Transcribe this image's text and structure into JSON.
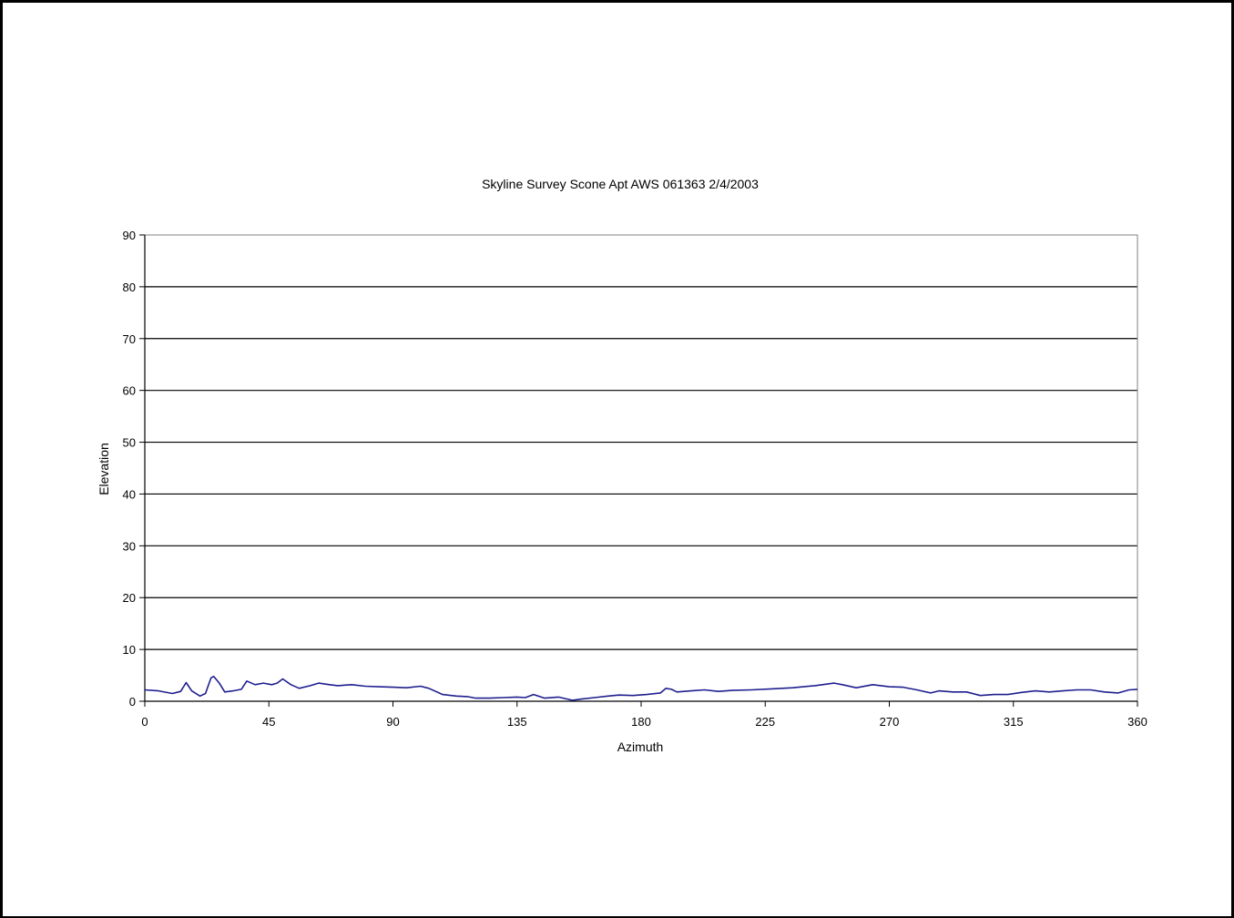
{
  "chart_data": {
    "type": "line",
    "title": "Skyline Survey Scone Apt AWS 061363 2/4/2003",
    "xlabel": "Azimuth",
    "ylabel": "Elevation",
    "xlim": [
      0,
      360
    ],
    "ylim": [
      0,
      90
    ],
    "xticks": [
      0,
      45,
      90,
      135,
      180,
      225,
      270,
      315,
      360
    ],
    "yticks": [
      0,
      10,
      20,
      30,
      40,
      50,
      60,
      70,
      80,
      90
    ],
    "grid": "horizontal",
    "legend": "none",
    "series": [
      {
        "color": "#1f1f8f",
        "x": [
          0,
          5,
          10,
          13,
          15,
          17,
          20,
          22,
          24,
          25,
          27,
          29,
          32,
          35,
          37,
          40,
          43,
          46,
          48,
          50,
          53,
          56,
          60,
          63,
          67,
          70,
          75,
          80,
          85,
          90,
          95,
          100,
          103,
          108,
          113,
          117,
          120,
          125,
          130,
          135,
          138,
          141,
          145,
          150,
          155,
          158,
          163,
          168,
          172,
          177,
          182,
          187,
          189,
          191,
          193,
          198,
          203,
          208,
          213,
          220,
          228,
          235,
          243,
          250,
          253,
          258,
          264,
          270,
          275,
          280,
          285,
          288,
          293,
          298,
          303,
          308,
          313,
          318,
          323,
          328,
          333,
          338,
          343,
          348,
          353,
          357,
          360
        ],
        "values": [
          2.2,
          2.0,
          1.5,
          1.9,
          3.6,
          2.0,
          1.0,
          1.5,
          4.5,
          4.8,
          3.5,
          1.8,
          2.0,
          2.3,
          3.9,
          3.2,
          3.5,
          3.2,
          3.5,
          4.3,
          3.2,
          2.5,
          3.0,
          3.5,
          3.2,
          3.0,
          3.2,
          2.9,
          2.8,
          2.7,
          2.6,
          2.9,
          2.5,
          1.3,
          1.0,
          0.9,
          0.6,
          0.6,
          0.7,
          0.8,
          0.7,
          1.3,
          0.6,
          0.8,
          0.2,
          0.4,
          0.7,
          1.0,
          1.2,
          1.1,
          1.3,
          1.6,
          2.5,
          2.3,
          1.8,
          2.0,
          2.2,
          1.9,
          2.1,
          2.2,
          2.4,
          2.6,
          3.0,
          3.5,
          3.2,
          2.6,
          3.2,
          2.8,
          2.7,
          2.2,
          1.6,
          2.0,
          1.8,
          1.8,
          1.1,
          1.3,
          1.3,
          1.7,
          2.0,
          1.8,
          2.0,
          2.2,
          2.2,
          1.8,
          1.6,
          2.2,
          2.3
        ]
      }
    ]
  }
}
